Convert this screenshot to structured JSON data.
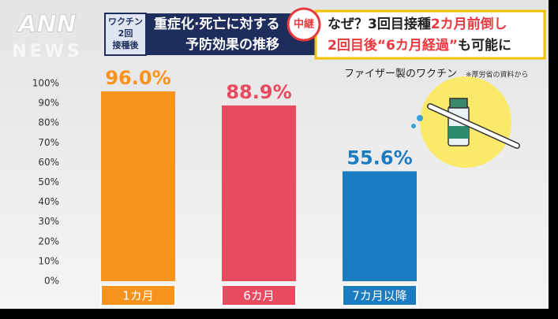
{
  "logo": [
    "ANN",
    "NEWS"
  ],
  "header": {
    "badge": [
      "ワクチン",
      "2回",
      "接種後"
    ],
    "title_lines": [
      "重症化·死亡に対する",
      "予防効果の推移"
    ],
    "live": "中継",
    "headline_lines": [
      [
        "なぜ？3回目接種",
        "2カ月前倒し"
      ],
      [
        "2回目後",
        "“6カ月経過”",
        "も可能に"
      ]
    ]
  },
  "chart_data": {
    "type": "bar",
    "source": "ファイザー製のワクチン",
    "note": "※厚労省の資料から",
    "categories": [
      "1カ月",
      "6カ月",
      "7カ月以降"
    ],
    "values": [
      96.0,
      88.9,
      55.6
    ],
    "value_labels": [
      "96.0%",
      "88.9%",
      "55.6%"
    ],
    "colors": [
      "#f7931e",
      "#e84a5f",
      "#1b7cc2"
    ],
    "ylim": [
      0,
      100
    ],
    "yticks": [
      {
        "value": 0,
        "label": "0%"
      },
      {
        "value": 10,
        "label": "10%"
      },
      {
        "value": 20,
        "label": "20%"
      },
      {
        "value": 30,
        "label": "30%"
      },
      {
        "value": 40,
        "label": "40%"
      },
      {
        "value": 50,
        "label": "50%"
      },
      {
        "value": 60,
        "label": "60%"
      },
      {
        "value": 70,
        "label": "70%"
      },
      {
        "value": 80,
        "label": "80%"
      },
      {
        "value": 90,
        "label": "90%"
      },
      {
        "value": 100,
        "label": "100%"
      }
    ],
    "grid": false
  }
}
